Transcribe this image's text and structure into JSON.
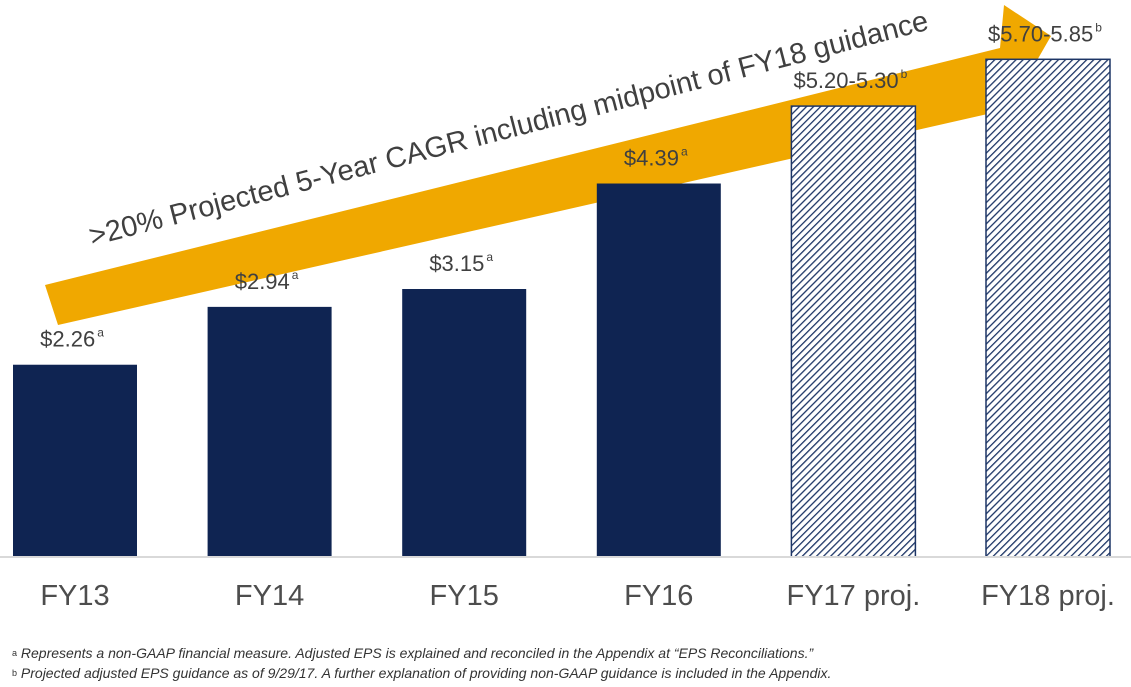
{
  "chart_data": {
    "type": "bar",
    "title": "",
    "xlabel": "",
    "ylabel": "",
    "ylim": [
      0,
      6.5
    ],
    "grid": false,
    "categories": [
      "FY13",
      "FY14",
      "FY15",
      "FY16",
      "FY17 proj.",
      "FY18 proj."
    ],
    "values": [
      2.26,
      2.94,
      3.15,
      4.39,
      5.3,
      5.85
    ],
    "labels": [
      "$2.26",
      "$2.94",
      "$3.15",
      "$4.39",
      "$5.20-5.30",
      "$5.70-5.85"
    ],
    "label_superscripts": [
      "a",
      "a",
      "a",
      "a",
      "b",
      "b"
    ],
    "projected": [
      false,
      false,
      false,
      false,
      true,
      true
    ],
    "annotation": ">20% Projected 5-Year CAGR including midpoint of FY18 guidance"
  },
  "colors": {
    "actual_bar": "#0f2452",
    "projected_hatch": "#1d3566",
    "arrow": "#f0a800",
    "baseline": "#d9d9d9"
  },
  "footnotes": [
    {
      "mark": "a",
      "text": "Represents a non-GAAP financial measure. Adjusted EPS is explained and reconciled in the Appendix at “EPS Reconciliations.”"
    },
    {
      "mark": "b",
      "text": "Projected adjusted EPS guidance as of 9/29/17. A further explanation of providing non-GAAP guidance is included in the Appendix."
    }
  ]
}
